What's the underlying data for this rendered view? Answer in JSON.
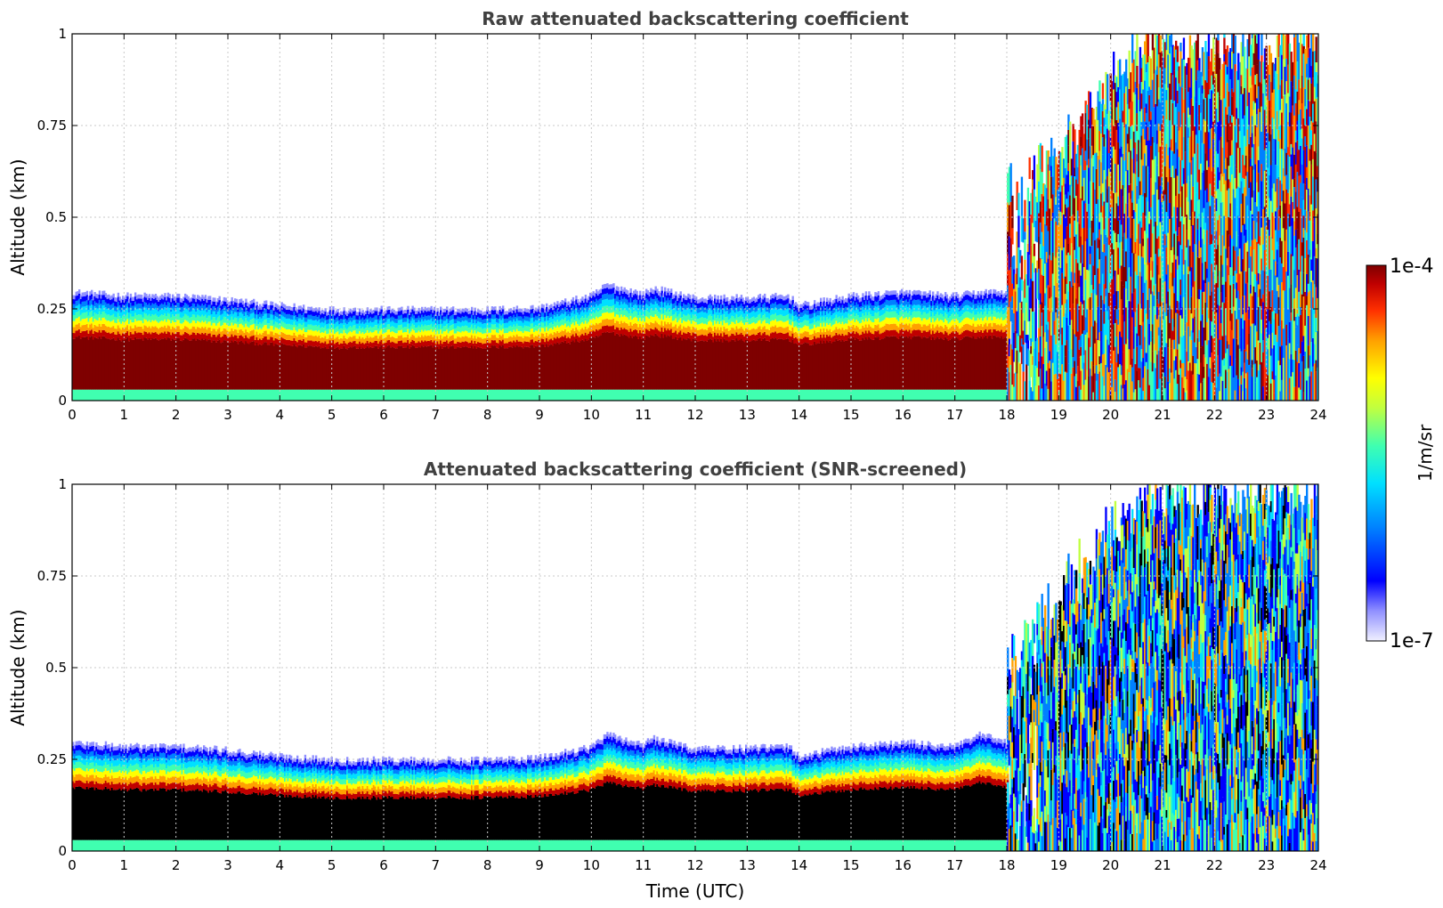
{
  "chart_data": [
    {
      "type": "heatmap",
      "title": "Raw attenuated backscattering coefficient",
      "xlabel": "",
      "ylabel": "Altitude (km)",
      "xlim": [
        0,
        24
      ],
      "ylim": [
        0,
        1
      ],
      "xticks": [
        0,
        1,
        2,
        3,
        4,
        5,
        6,
        7,
        8,
        9,
        10,
        11,
        12,
        13,
        14,
        15,
        16,
        17,
        18,
        19,
        20,
        21,
        22,
        23,
        24
      ],
      "xticklabels": [
        "0",
        "1",
        "2",
        "3",
        "4",
        "5",
        "6",
        "7",
        "8",
        "9",
        "10",
        "11",
        "12",
        "13",
        "14",
        "15",
        "16",
        "17",
        "18",
        "19",
        "20",
        "21",
        "22",
        "23",
        "24"
      ],
      "yticks": [
        0,
        0.25,
        0.5,
        0.75,
        1
      ],
      "yticklabels": [
        "0",
        "0.25",
        "0.5",
        "0.75",
        "1"
      ],
      "grid": true,
      "screened": false,
      "boundary_layer_top_km": {
        "x": [
          0,
          1,
          2,
          3,
          4,
          5,
          6,
          7,
          8,
          9,
          10,
          10.3,
          11,
          11.2,
          12,
          13,
          13.8,
          14,
          15,
          16,
          17,
          17.5,
          18
        ],
        "y": [
          0.28,
          0.27,
          0.27,
          0.26,
          0.245,
          0.235,
          0.235,
          0.235,
          0.235,
          0.24,
          0.27,
          0.3,
          0.275,
          0.29,
          0.265,
          0.265,
          0.27,
          0.245,
          0.27,
          0.28,
          0.27,
          0.28,
          0.28
        ]
      },
      "cloud_period_utc": [
        18,
        24
      ]
    },
    {
      "type": "heatmap",
      "title": "Attenuated backscattering coefficient (SNR-screened)",
      "xlabel": "Time (UTC)",
      "ylabel": "Altitude (km)",
      "xlim": [
        0,
        24
      ],
      "ylim": [
        0,
        1
      ],
      "xticks": [
        0,
        1,
        2,
        3,
        4,
        5,
        6,
        7,
        8,
        9,
        10,
        11,
        12,
        13,
        14,
        15,
        16,
        17,
        18,
        19,
        20,
        21,
        22,
        23,
        24
      ],
      "xticklabels": [
        "0",
        "1",
        "2",
        "3",
        "4",
        "5",
        "6",
        "7",
        "8",
        "9",
        "10",
        "11",
        "12",
        "13",
        "14",
        "15",
        "16",
        "17",
        "18",
        "19",
        "20",
        "21",
        "22",
        "23",
        "24"
      ],
      "yticks": [
        0,
        0.25,
        0.5,
        0.75,
        1
      ],
      "yticklabels": [
        "0",
        "0.25",
        "0.5",
        "0.75",
        "1"
      ],
      "grid": true,
      "screened": true,
      "boundary_layer_top_km": {
        "x": [
          0,
          1,
          2,
          3,
          4,
          5,
          6,
          7,
          8,
          9,
          10,
          10.3,
          11,
          11.2,
          12,
          13,
          13.8,
          14,
          15,
          16,
          17,
          17.5,
          18
        ],
        "y": [
          0.28,
          0.27,
          0.27,
          0.26,
          0.245,
          0.235,
          0.235,
          0.235,
          0.235,
          0.24,
          0.27,
          0.3,
          0.275,
          0.29,
          0.265,
          0.265,
          0.27,
          0.245,
          0.27,
          0.28,
          0.27,
          0.3,
          0.28
        ]
      },
      "cloud_period_utc": [
        18,
        24
      ]
    }
  ],
  "colorbar": {
    "label": "1/m/sr",
    "min_label": "1e-7",
    "max_label": "1e-4",
    "scale": "log",
    "colormap": [
      "#f0f0ff",
      "#9090ff",
      "#0000ff",
      "#0080ff",
      "#00e0ff",
      "#40ffb0",
      "#c0ff40",
      "#ffff00",
      "#ffa000",
      "#ff3000",
      "#c00000",
      "#7f0000"
    ]
  }
}
